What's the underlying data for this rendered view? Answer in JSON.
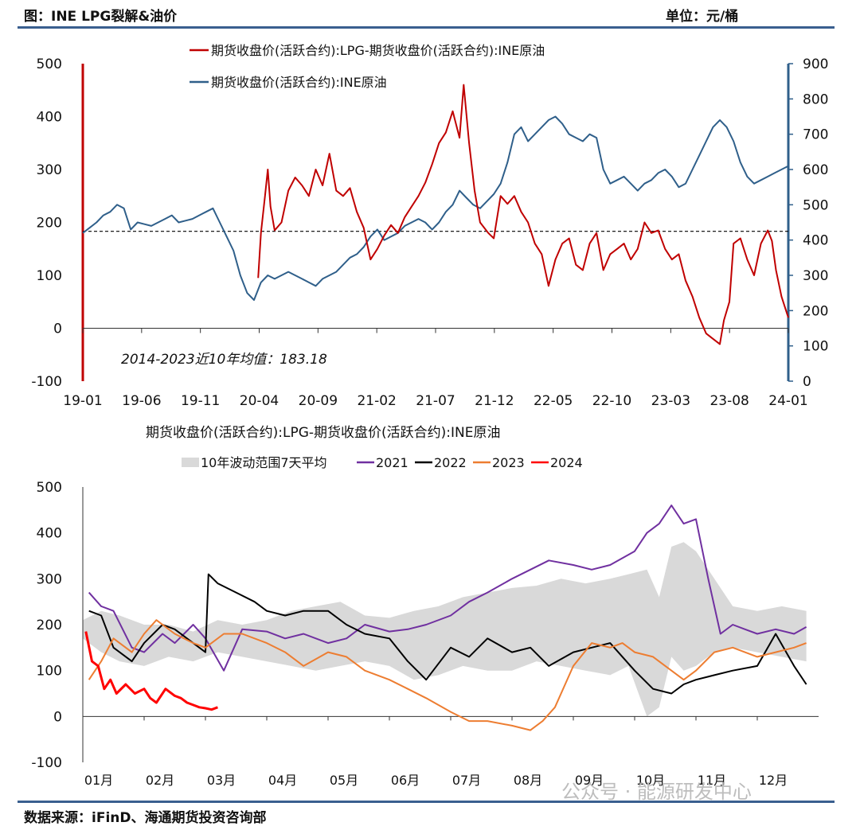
{
  "header": {
    "title": "图：INE LPG裂解&油价",
    "unit": "单位：元/桶"
  },
  "footer": {
    "source": "数据来源：iFinD、海通期货投资咨询部",
    "watermark": "公众号 · 能源研发中心"
  },
  "colors": {
    "red": "#c00000",
    "blue": "#2f5f8a",
    "purple": "#7030a0",
    "black": "#000000",
    "orange": "#ed7d31",
    "bright_red": "#ff0000",
    "band": "#d9d9d9",
    "frame": "#3a5f8f"
  },
  "chart_data": [
    {
      "type": "line",
      "legend": [
        "期货收盘价(活跃合约):LPG-期货收盘价(活跃合约):INE原油",
        "期货收盘价(活跃合约):INE原油"
      ],
      "x_ticks": [
        "19-01",
        "19-06",
        "19-11",
        "20-04",
        "20-09",
        "21-02",
        "21-07",
        "21-12",
        "22-05",
        "22-10",
        "23-03",
        "23-08",
        "24-01"
      ],
      "y_left": {
        "lim": [
          -100,
          500
        ],
        "ticks": [
          "500",
          "400",
          "300",
          "200",
          "100",
          "0",
          "-100"
        ]
      },
      "y_right": {
        "lim": [
          0,
          900
        ],
        "ticks": [
          "900",
          "800",
          "700",
          "600",
          "500",
          "400",
          "300",
          "200",
          "100",
          "0"
        ]
      },
      "annotation": "2014-2023近10年均值：183.18",
      "mean_line": 183.18,
      "series": [
        {
          "name": "期货收盘价(活跃合约):LPG-期货收盘价(活跃合约):INE原油",
          "axis": "left",
          "x": [
            2020.28,
            2020.3,
            2020.33,
            2020.35,
            2020.37,
            2020.4,
            2020.45,
            2020.5,
            2020.55,
            2020.6,
            2020.65,
            2020.7,
            2020.75,
            2020.8,
            2020.85,
            2020.9,
            2020.95,
            2021.0,
            2021.05,
            2021.1,
            2021.15,
            2021.2,
            2021.25,
            2021.3,
            2021.35,
            2021.4,
            2021.45,
            2021.5,
            2021.55,
            2021.6,
            2021.65,
            2021.7,
            2021.75,
            2021.78,
            2021.82,
            2021.86,
            2021.9,
            2021.93,
            2021.96,
            2022.0,
            2022.05,
            2022.1,
            2022.15,
            2022.2,
            2022.25,
            2022.3,
            2022.35,
            2022.4,
            2022.45,
            2022.5,
            2022.55,
            2022.6,
            2022.65,
            2022.7,
            2022.75,
            2022.8,
            2022.85,
            2022.9,
            2022.95,
            2023.0,
            2023.05,
            2023.1,
            2023.15,
            2023.2,
            2023.25,
            2023.3,
            2023.35,
            2023.4,
            2023.45,
            2023.5,
            2023.55,
            2023.6,
            2023.65,
            2023.68,
            2023.72,
            2023.75,
            2023.8,
            2023.85,
            2023.9,
            2023.95,
            2024.0,
            2024.03,
            2024.06,
            2024.1,
            2024.15
          ],
          "y": [
            95,
            180,
            250,
            300,
            230,
            185,
            200,
            260,
            285,
            270,
            250,
            300,
            270,
            330,
            260,
            250,
            265,
            220,
            190,
            130,
            150,
            175,
            195,
            180,
            210,
            230,
            250,
            275,
            310,
            350,
            370,
            410,
            360,
            460,
            350,
            260,
            200,
            190,
            180,
            170,
            250,
            235,
            250,
            220,
            200,
            160,
            140,
            80,
            130,
            160,
            170,
            120,
            110,
            160,
            180,
            110,
            140,
            150,
            160,
            130,
            150,
            200,
            180,
            185,
            150,
            130,
            140,
            90,
            60,
            20,
            -10,
            -20,
            -30,
            15,
            50,
            160,
            170,
            130,
            100,
            160,
            185,
            165,
            110,
            60,
            20
          ]
        },
        {
          "name": "期货收盘价(活跃合约):INE原油",
          "axis": "right",
          "x": [
            2019.0,
            2019.05,
            2019.1,
            2019.15,
            2019.2,
            2019.25,
            2019.3,
            2019.35,
            2019.4,
            2019.45,
            2019.5,
            2019.55,
            2019.6,
            2019.65,
            2019.7,
            2019.75,
            2019.8,
            2019.85,
            2019.9,
            2019.95,
            2020.0,
            2020.05,
            2020.1,
            2020.15,
            2020.2,
            2020.25,
            2020.3,
            2020.35,
            2020.4,
            2020.45,
            2020.5,
            2020.55,
            2020.6,
            2020.65,
            2020.7,
            2020.75,
            2020.8,
            2020.85,
            2020.9,
            2020.95,
            2021.0,
            2021.05,
            2021.1,
            2021.15,
            2021.2,
            2021.25,
            2021.3,
            2021.35,
            2021.4,
            2021.45,
            2021.5,
            2021.55,
            2021.6,
            2021.65,
            2021.7,
            2021.75,
            2021.8,
            2021.85,
            2021.9,
            2021.95,
            2022.0,
            2022.05,
            2022.1,
            2022.15,
            2022.2,
            2022.25,
            2022.3,
            2022.35,
            2022.4,
            2022.45,
            2022.5,
            2022.55,
            2022.6,
            2022.65,
            2022.7,
            2022.75,
            2022.8,
            2022.85,
            2022.9,
            2022.95,
            2023.0,
            2023.05,
            2023.1,
            2023.15,
            2023.2,
            2023.25,
            2023.3,
            2023.35,
            2023.4,
            2023.45,
            2023.5,
            2023.55,
            2023.6,
            2023.65,
            2023.7,
            2023.75,
            2023.8,
            2023.85,
            2023.9,
            2023.95,
            2024.0,
            2024.05,
            2024.1,
            2024.15
          ],
          "y": [
            420,
            435,
            450,
            470,
            480,
            500,
            490,
            430,
            450,
            445,
            440,
            450,
            460,
            470,
            450,
            455,
            460,
            470,
            480,
            490,
            450,
            410,
            370,
            300,
            250,
            230,
            280,
            300,
            290,
            300,
            310,
            300,
            290,
            280,
            270,
            290,
            300,
            310,
            330,
            350,
            360,
            380,
            410,
            430,
            400,
            410,
            420,
            440,
            450,
            460,
            450,
            430,
            450,
            480,
            500,
            540,
            520,
            500,
            490,
            510,
            530,
            560,
            620,
            700,
            720,
            680,
            700,
            720,
            740,
            750,
            730,
            700,
            690,
            680,
            700,
            690,
            600,
            560,
            570,
            580,
            560,
            540,
            560,
            570,
            590,
            600,
            580,
            550,
            560,
            600,
            640,
            680,
            720,
            740,
            720,
            680,
            620,
            580,
            560,
            570,
            580,
            590,
            600,
            610
          ]
        }
      ]
    },
    {
      "type": "line",
      "title": "期货收盘价(活跃合约):LPG-期货收盘价(活跃合约):INE原油",
      "legend": [
        "10年波动范围7天平均",
        "2021",
        "2022",
        "2023",
        "2024"
      ],
      "x_ticks": [
        "01月",
        "02月",
        "03月",
        "04月",
        "05月",
        "06月",
        "07月",
        "08月",
        "09月",
        "10月",
        "11月",
        "12月"
      ],
      "y_lim": [
        -100,
        500
      ],
      "y_ticks": [
        "500",
        "400",
        "300",
        "200",
        "100",
        "0",
        "-100"
      ],
      "band": {
        "name": "10年波动范围7天平均",
        "x": [
          0.0,
          0.3,
          0.6,
          1.0,
          1.4,
          1.8,
          2.2,
          2.6,
          3.0,
          3.4,
          3.8,
          4.2,
          4.6,
          5.0,
          5.4,
          5.8,
          6.2,
          6.6,
          7.0,
          7.4,
          7.8,
          8.2,
          8.6,
          8.9,
          9.2,
          9.4,
          9.6,
          9.8,
          10.0,
          10.3,
          10.6,
          11.0,
          11.4,
          11.8
        ],
        "high": [
          210,
          230,
          220,
          200,
          200,
          185,
          210,
          200,
          210,
          230,
          240,
          250,
          220,
          215,
          230,
          240,
          260,
          270,
          280,
          285,
          300,
          290,
          300,
          310,
          320,
          260,
          370,
          380,
          360,
          300,
          240,
          230,
          240,
          230
        ],
        "low": [
          170,
          140,
          120,
          110,
          130,
          120,
          140,
          130,
          120,
          110,
          100,
          110,
          120,
          110,
          80,
          90,
          110,
          100,
          100,
          120,
          110,
          100,
          90,
          110,
          0,
          20,
          130,
          100,
          110,
          140,
          150,
          140,
          130,
          120
        ]
      },
      "series": [
        {
          "name": "2021",
          "x": [
            0.1,
            0.3,
            0.5,
            0.8,
            1.0,
            1.3,
            1.5,
            1.8,
            2.0,
            2.3,
            2.6,
            3.0,
            3.3,
            3.6,
            4.0,
            4.3,
            4.6,
            5.0,
            5.3,
            5.6,
            6.0,
            6.3,
            6.6,
            7.0,
            7.3,
            7.6,
            8.0,
            8.3,
            8.6,
            9.0,
            9.2,
            9.4,
            9.6,
            9.8,
            10.0,
            10.2,
            10.4,
            10.6,
            10.8,
            11.0,
            11.3,
            11.6,
            11.8
          ],
          "y": [
            270,
            240,
            230,
            150,
            140,
            180,
            160,
            200,
            170,
            100,
            190,
            185,
            170,
            180,
            160,
            170,
            200,
            185,
            190,
            200,
            220,
            250,
            270,
            300,
            320,
            340,
            330,
            320,
            330,
            360,
            400,
            420,
            460,
            420,
            430,
            300,
            180,
            200,
            190,
            180,
            190,
            180,
            195
          ]
        },
        {
          "name": "2022",
          "x": [
            0.1,
            0.3,
            0.5,
            0.8,
            1.0,
            1.3,
            1.5,
            1.8,
            2.0,
            2.05,
            2.2,
            2.5,
            2.8,
            3.0,
            3.3,
            3.6,
            4.0,
            4.3,
            4.6,
            5.0,
            5.3,
            5.6,
            6.0,
            6.3,
            6.6,
            7.0,
            7.3,
            7.6,
            8.0,
            8.3,
            8.6,
            9.0,
            9.3,
            9.6,
            9.8,
            10.0,
            10.3,
            10.6,
            11.0,
            11.3,
            11.6,
            11.8
          ],
          "y": [
            230,
            220,
            150,
            120,
            160,
            200,
            190,
            160,
            140,
            310,
            290,
            270,
            250,
            230,
            220,
            230,
            230,
            200,
            180,
            170,
            120,
            80,
            150,
            130,
            170,
            140,
            150,
            110,
            140,
            150,
            160,
            100,
            60,
            50,
            70,
            80,
            90,
            100,
            110,
            180,
            110,
            70
          ]
        },
        {
          "name": "2023",
          "x": [
            0.1,
            0.3,
            0.5,
            0.8,
            1.0,
            1.2,
            1.5,
            1.8,
            2.0,
            2.3,
            2.6,
            3.0,
            3.3,
            3.6,
            4.0,
            4.3,
            4.6,
            5.0,
            5.3,
            5.6,
            6.0,
            6.3,
            6.6,
            7.0,
            7.3,
            7.5,
            7.7,
            8.0,
            8.3,
            8.6,
            8.8,
            9.0,
            9.3,
            9.6,
            9.8,
            10.0,
            10.3,
            10.6,
            11.0,
            11.3,
            11.6,
            11.8
          ],
          "y": [
            80,
            120,
            170,
            140,
            180,
            210,
            180,
            160,
            150,
            180,
            180,
            160,
            140,
            110,
            140,
            130,
            100,
            80,
            60,
            40,
            10,
            -10,
            -10,
            -20,
            -30,
            -10,
            20,
            110,
            160,
            150,
            160,
            140,
            130,
            100,
            80,
            100,
            140,
            150,
            130,
            140,
            150,
            160
          ]
        },
        {
          "name": "2024",
          "x": [
            0.05,
            0.15,
            0.25,
            0.35,
            0.45,
            0.55,
            0.7,
            0.85,
            1.0,
            1.1,
            1.2,
            1.35,
            1.5,
            1.6,
            1.7,
            1.8,
            1.9,
            2.0,
            2.1,
            2.2
          ],
          "y": [
            185,
            120,
            110,
            60,
            80,
            50,
            70,
            50,
            60,
            40,
            30,
            60,
            45,
            40,
            30,
            25,
            20,
            18,
            15,
            20
          ]
        }
      ]
    }
  ]
}
